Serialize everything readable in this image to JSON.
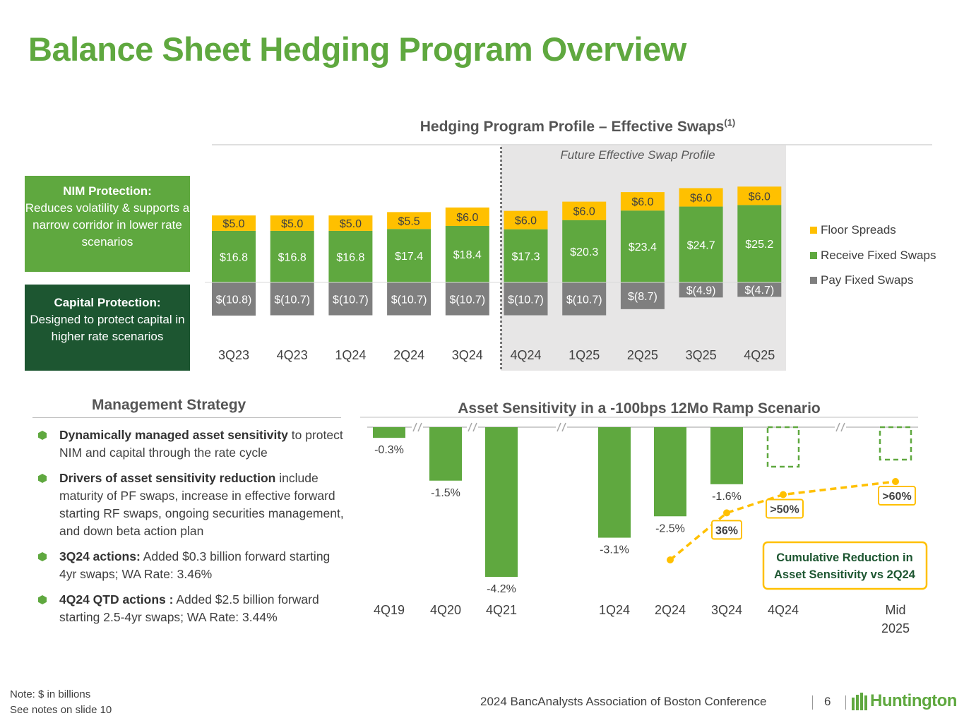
{
  "title": "Balance Sheet Hedging Program Overview",
  "colors": {
    "brand_green": "#5fa83f",
    "dark_green": "#1d5631",
    "floor_gold": "#ffc000",
    "pay_gray": "#7f7f7f",
    "shade": "#e7e6e6"
  },
  "nim_box": {
    "heading": "NIM Protection:",
    "body": "Reduces volatility & supports a narrow corridor in lower rate scenarios"
  },
  "capital_box": {
    "heading": "Capital Protection:",
    "body": "Designed to protect capital in higher rate scenarios"
  },
  "strategy": {
    "title": "Management Strategy",
    "bullets": [
      {
        "bold": "Dynamically managed asset sensitivity",
        "text": " to protect NIM and capital through the rate cycle"
      },
      {
        "bold": "Drivers of asset sensitivity reduction",
        "text": " include maturity of PF swaps, increase in effective forward starting RF swaps, ongoing securities management, and down beta action plan"
      },
      {
        "bold": "3Q24 actions:",
        "text": " Added $0.3 billion forward starting 4yr swaps; WA Rate: 3.46%"
      },
      {
        "bold": "4Q24 QTD actions :",
        "text": " Added $2.5 billion forward starting 2.5-4yr swaps; WA Rate: 3.44%"
      }
    ]
  },
  "footer": {
    "note_line1": "Note: $ in billions",
    "note_line2": "See notes on slide 10",
    "conference": "2024 BancAnalysts Association of Boston Conference",
    "page": "6",
    "logo": "Huntington"
  },
  "chart_data": [
    {
      "type": "bar",
      "stacked": true,
      "title": "Hedging Program Profile – Effective Swaps",
      "title_superscript": "(1)",
      "shaded_region_label": "Future Effective Swap Profile",
      "shaded_from_category": "4Q24",
      "categories": [
        "3Q23",
        "4Q23",
        "1Q24",
        "2Q24",
        "3Q24",
        "4Q24",
        "1Q25",
        "2Q25",
        "3Q25",
        "4Q25"
      ],
      "series": [
        {
          "name": "Floor Spreads",
          "color": "#ffc000",
          "values": [
            5.0,
            5.0,
            5.0,
            5.5,
            6.0,
            6.0,
            6.0,
            6.0,
            6.0,
            6.0
          ],
          "labels": [
            "$5.0",
            "$5.0",
            "$5.0",
            "$5.5",
            "$6.0",
            "$6.0",
            "$6.0",
            "$6.0",
            "$6.0",
            "$6.0"
          ]
        },
        {
          "name": "Receive Fixed Swaps",
          "color": "#5fa83f",
          "values": [
            16.8,
            16.8,
            16.8,
            17.4,
            18.4,
            17.3,
            20.3,
            23.4,
            24.7,
            25.2
          ],
          "labels": [
            "$16.8",
            "$16.8",
            "$16.8",
            "$17.4",
            "$18.4",
            "$17.3",
            "$20.3",
            "$23.4",
            "$24.7",
            "$25.2"
          ]
        },
        {
          "name": "Pay Fixed Swaps",
          "color": "#7f7f7f",
          "values": [
            -10.8,
            -10.7,
            -10.7,
            -10.7,
            -10.7,
            -10.7,
            -10.7,
            -8.7,
            -4.9,
            -4.7
          ],
          "labels": [
            "$(10.8)",
            "$(10.7)",
            "$(10.7)",
            "$(10.7)",
            "$(10.7)",
            "$(10.7)",
            "$(10.7)",
            "$(8.7)",
            "$(4.9)",
            "$(4.7)"
          ]
        }
      ],
      "legend": [
        "Floor Spreads",
        "Receive Fixed Swaps",
        "Pay Fixed Swaps"
      ],
      "legend_position": "right",
      "ylim": [
        -11,
        33
      ]
    },
    {
      "type": "bar",
      "title": "Asset Sensitivity in a -100bps 12Mo Ramp Scenario",
      "categories": [
        "4Q19",
        "4Q20",
        "4Q21",
        "1Q24",
        "2Q24",
        "3Q24",
        "4Q24",
        "Mid 2025"
      ],
      "values": [
        -0.3,
        -1.5,
        -4.2,
        -3.1,
        -2.5,
        -1.6,
        null,
        null
      ],
      "labels": [
        "-0.3%",
        "-1.5%",
        "-4.2%",
        "-3.1%",
        "-2.5%",
        "-1.6%",
        "",
        ""
      ],
      "projected_categories": [
        "4Q24",
        "Mid 2025"
      ],
      "axis_breaks": "between 4Q19/4Q20, 4Q20/4Q21, 4Q21/1Q24, 4Q24/Mid 2025",
      "ylim": [
        -4.2,
        0
      ],
      "overlay_line": {
        "name": "Cumulative Reduction in Asset Sensitivity vs 2Q24",
        "style": "dashed",
        "color": "#ffc000",
        "categories": [
          "2Q24",
          "3Q24",
          "4Q24",
          "Mid 2025"
        ],
        "values": [
          0,
          36,
          50,
          60
        ],
        "labels": [
          "",
          "36%",
          ">50%",
          ">60%"
        ]
      },
      "callout": "Cumulative Reduction in Asset Sensitivity vs 2Q24"
    }
  ]
}
